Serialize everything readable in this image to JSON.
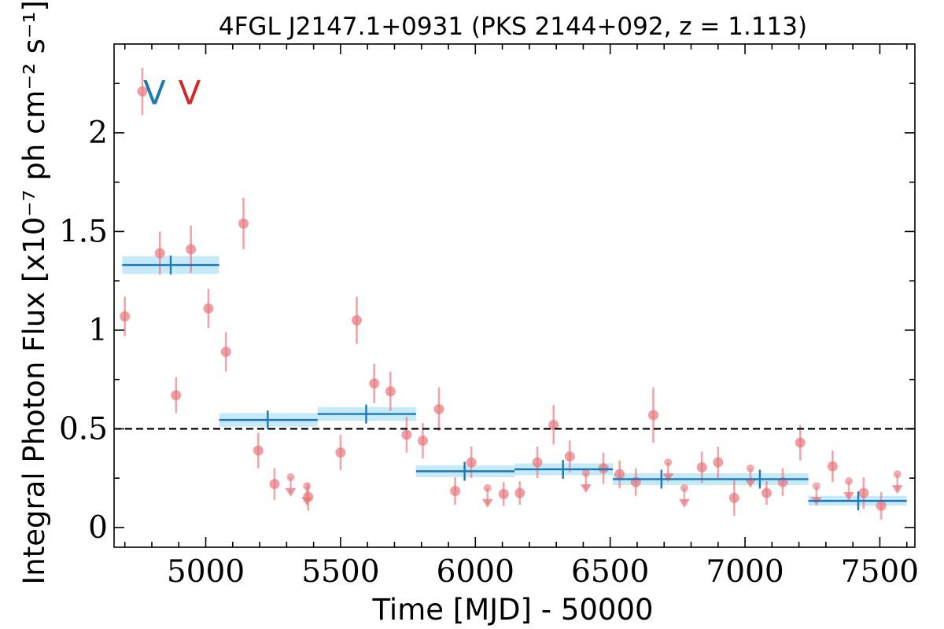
{
  "chart_data": {
    "type": "scatter",
    "title": "4FGL J2147.1+0931 (PKS 2144+092, z = 1.113)",
    "xlabel": "Time [MJD] - 50000",
    "ylabel": "Integral Photon Flux [x10⁻⁷ ph cm⁻² s⁻¹]",
    "xlim": [
      4660,
      7630
    ],
    "ylim": [
      -0.1,
      2.45
    ],
    "xticks": [
      5000,
      5500,
      6000,
      6500,
      7000,
      7500
    ],
    "xtick_labels": [
      "5000",
      "5500",
      "6000",
      "6500",
      "7000",
      "7500"
    ],
    "yticks": [
      0,
      0.5,
      1,
      1.5,
      2
    ],
    "ytick_labels": [
      "0",
      "0.5",
      "1",
      "1.5",
      "2"
    ],
    "threshold": {
      "y": 0.5,
      "style": "dashed",
      "color": "#000000"
    },
    "annotations": [
      {
        "text": "V",
        "x": 4810,
        "y": 2.2,
        "color": "#1f77b4"
      },
      {
        "text": "V",
        "x": 4940,
        "y": 2.2,
        "color": "#d62728"
      }
    ],
    "colors": {
      "points": "#e8757a",
      "bins_line": "#1f77b4",
      "bins_band": "#bde6f7"
    },
    "series": [
      {
        "type": "points",
        "values": [
          {
            "x": 4700,
            "y": 1.07,
            "err": 0.1
          },
          {
            "x": 4765,
            "y": 2.21,
            "err": 0.12
          },
          {
            "x": 4830,
            "y": 1.39,
            "err": 0.11
          },
          {
            "x": 4890,
            "y": 0.67,
            "err": 0.09
          },
          {
            "x": 4945,
            "y": 1.41,
            "err": 0.12
          },
          {
            "x": 5010,
            "y": 1.11,
            "err": 0.1
          },
          {
            "x": 5075,
            "y": 0.89,
            "err": 0.1
          },
          {
            "x": 5140,
            "y": 1.54,
            "err": 0.13
          },
          {
            "x": 5195,
            "y": 0.39,
            "err": 0.09
          },
          {
            "x": 5255,
            "y": 0.22,
            "err": 0.08
          },
          {
            "x": 5380,
            "y": 0.155,
            "err": 0.07
          },
          {
            "x": 5500,
            "y": 0.38,
            "err": 0.09
          },
          {
            "x": 5560,
            "y": 1.05,
            "err": 0.12
          },
          {
            "x": 5625,
            "y": 0.73,
            "err": 0.1
          },
          {
            "x": 5685,
            "y": 0.69,
            "err": 0.1
          },
          {
            "x": 5745,
            "y": 0.47,
            "err": 0.09
          },
          {
            "x": 5805,
            "y": 0.44,
            "err": 0.09
          },
          {
            "x": 5865,
            "y": 0.6,
            "err": 0.11
          },
          {
            "x": 5925,
            "y": 0.185,
            "err": 0.07
          },
          {
            "x": 5985,
            "y": 0.33,
            "err": 0.08
          },
          {
            "x": 6105,
            "y": 0.17,
            "err": 0.06
          },
          {
            "x": 6165,
            "y": 0.175,
            "err": 0.06
          },
          {
            "x": 6230,
            "y": 0.33,
            "err": 0.08
          },
          {
            "x": 6290,
            "y": 0.52,
            "err": 0.1
          },
          {
            "x": 6350,
            "y": 0.36,
            "err": 0.08
          },
          {
            "x": 6475,
            "y": 0.3,
            "err": 0.08
          },
          {
            "x": 6535,
            "y": 0.27,
            "err": 0.07
          },
          {
            "x": 6595,
            "y": 0.23,
            "err": 0.07
          },
          {
            "x": 6660,
            "y": 0.57,
            "err": 0.14
          },
          {
            "x": 6840,
            "y": 0.305,
            "err": 0.08
          },
          {
            "x": 6900,
            "y": 0.33,
            "err": 0.08
          },
          {
            "x": 6960,
            "y": 0.15,
            "err": 0.09
          },
          {
            "x": 7080,
            "y": 0.175,
            "err": 0.06
          },
          {
            "x": 7140,
            "y": 0.23,
            "err": 0.07
          },
          {
            "x": 7205,
            "y": 0.43,
            "err": 0.09
          },
          {
            "x": 7325,
            "y": 0.31,
            "err": 0.08
          },
          {
            "x": 7440,
            "y": 0.175,
            "err": 0.08
          },
          {
            "x": 7505,
            "y": 0.11,
            "err": 0.07
          }
        ]
      },
      {
        "type": "upper_limits",
        "values": [
          {
            "x": 5315,
            "y": 0.255
          },
          {
            "x": 5375,
            "y": 0.21
          },
          {
            "x": 6045,
            "y": 0.2
          },
          {
            "x": 6410,
            "y": 0.275
          },
          {
            "x": 6715,
            "y": 0.33
          },
          {
            "x": 6775,
            "y": 0.2
          },
          {
            "x": 7020,
            "y": 0.3
          },
          {
            "x": 7265,
            "y": 0.21
          },
          {
            "x": 7385,
            "y": 0.235
          },
          {
            "x": 7565,
            "y": 0.27
          }
        ]
      },
      {
        "type": "bins",
        "values": [
          {
            "x0": 4690,
            "x1": 5050,
            "xc": 4870,
            "y": 1.33,
            "err": 0.045
          },
          {
            "x0": 5050,
            "x1": 5415,
            "xc": 5230,
            "y": 0.545,
            "err": 0.035
          },
          {
            "x0": 5415,
            "x1": 5780,
            "xc": 5595,
            "y": 0.575,
            "err": 0.035
          },
          {
            "x0": 5780,
            "x1": 6145,
            "xc": 5960,
            "y": 0.285,
            "err": 0.03
          },
          {
            "x0": 6145,
            "x1": 6510,
            "xc": 6325,
            "y": 0.295,
            "err": 0.03
          },
          {
            "x0": 6510,
            "x1": 6870,
            "xc": 6690,
            "y": 0.245,
            "err": 0.03
          },
          {
            "x0": 6870,
            "x1": 7235,
            "xc": 7055,
            "y": 0.245,
            "err": 0.03
          },
          {
            "x0": 7235,
            "x1": 7600,
            "xc": 7420,
            "y": 0.135,
            "err": 0.025
          }
        ]
      }
    ]
  }
}
